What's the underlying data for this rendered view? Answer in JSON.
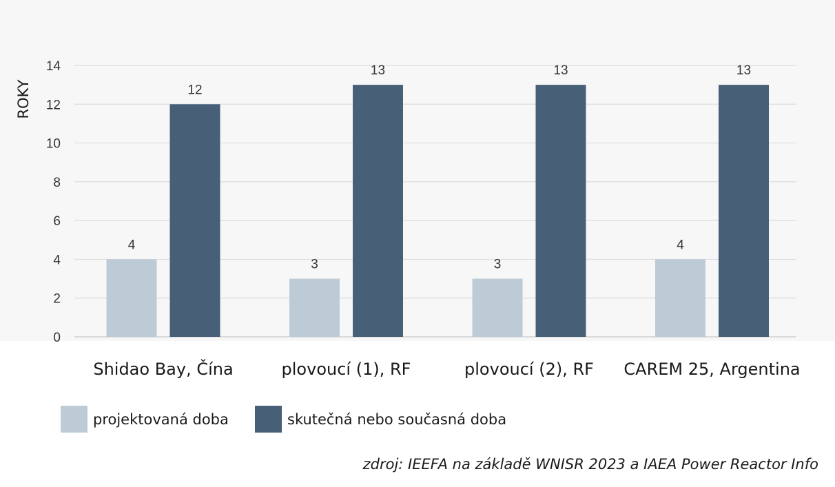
{
  "chart_data": {
    "type": "bar",
    "ylabel": "ROKY",
    "xlabel": "",
    "ylim": [
      0,
      14
    ],
    "yticks": [
      0,
      2,
      4,
      6,
      8,
      10,
      12,
      14
    ],
    "grid": true,
    "legend_position": "bottom-left",
    "categories": [
      "Shidao Bay, Čína",
      "plovoucí (1), RF",
      "plovoucí (2), RF",
      "CAREM 25, Argentina"
    ],
    "series": [
      {
        "name": "projektovaná doba",
        "color": "#bccbd6",
        "values": [
          4,
          3,
          3,
          4
        ]
      },
      {
        "name": "skutečná nebo současná doba",
        "color": "#475f77",
        "values": [
          12,
          13,
          13,
          13
        ]
      }
    ]
  },
  "source_note": "zdroj: IEEFA na základě WNISR 2023 a IAEA Power Reactor Info"
}
